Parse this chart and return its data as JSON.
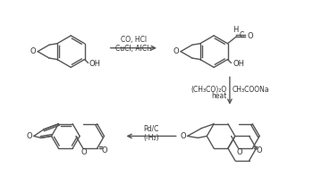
{
  "line_color": "#555555",
  "text_color": "#333333",
  "arrow_color": "#555555",
  "fig_width": 3.5,
  "fig_height": 2.15,
  "dpi": 100,
  "reaction1_label_top": "CO, HCl",
  "reaction1_label_bot": "CuCl, AlCl₃",
  "reaction2_label_left": "(CH₃CO)₂O",
  "reaction2_label_left2": "heat",
  "reaction2_label_right": "CH₃COONa",
  "reaction3_label_top": "Pd/C",
  "reaction3_label_bot": "(-H₂)"
}
